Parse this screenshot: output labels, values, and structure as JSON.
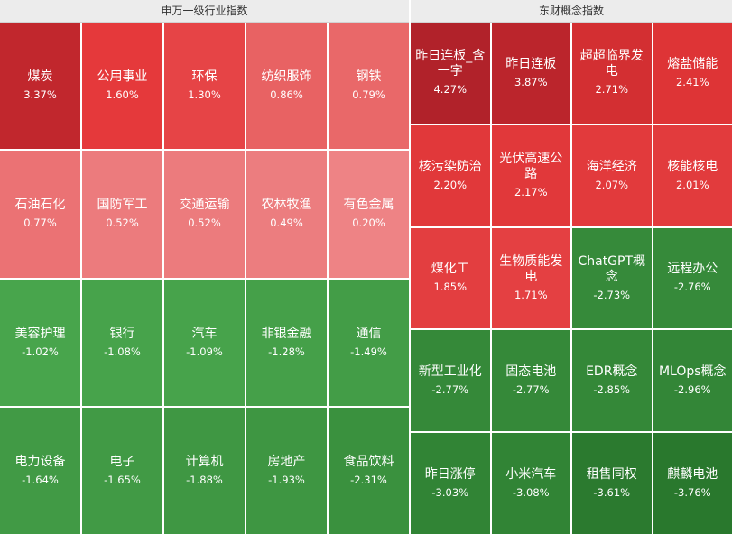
{
  "left_panel": {
    "title": "申万一级行业指数",
    "tiles": [
      {
        "name": "煤炭",
        "change": "3.37%",
        "color": "#c1272d"
      },
      {
        "name": "公用事业",
        "change": "1.60%",
        "color": "#e5393b"
      },
      {
        "name": "环保",
        "change": "1.30%",
        "color": "#e64446"
      },
      {
        "name": "纺织服饰",
        "change": "0.86%",
        "color": "#e86263"
      },
      {
        "name": "钢铁",
        "change": "0.79%",
        "color": "#e96869"
      },
      {
        "name": "石油石化",
        "change": "0.77%",
        "color": "#eb7274"
      },
      {
        "name": "国防军工",
        "change": "0.52%",
        "color": "#ec7b7d"
      },
      {
        "name": "交通运输",
        "change": "0.52%",
        "color": "#ec7b7d"
      },
      {
        "name": "农林牧渔",
        "change": "0.49%",
        "color": "#ec7d7f"
      },
      {
        "name": "有色金属",
        "change": "0.20%",
        "color": "#ee8385"
      },
      {
        "name": "美容护理",
        "change": "-1.02%",
        "color": "#48a54c"
      },
      {
        "name": "银行",
        "change": "-1.08%",
        "color": "#47a34b"
      },
      {
        "name": "汽车",
        "change": "-1.09%",
        "color": "#47a34b"
      },
      {
        "name": "非银金融",
        "change": "-1.28%",
        "color": "#45a049"
      },
      {
        "name": "通信",
        "change": "-1.49%",
        "color": "#439d47"
      },
      {
        "name": "电力设备",
        "change": "-1.64%",
        "color": "#419a45"
      },
      {
        "name": "电子",
        "change": "-1.65%",
        "color": "#419a45"
      },
      {
        "name": "计算机",
        "change": "-1.88%",
        "color": "#3f9743"
      },
      {
        "name": "房地产",
        "change": "-1.93%",
        "color": "#3e9642"
      },
      {
        "name": "食品饮料",
        "change": "-2.31%",
        "color": "#3a913e"
      }
    ]
  },
  "right_panel": {
    "title": "东财概念指数",
    "tiles": [
      {
        "name": "昨日连板_含一字",
        "change": "4.27%",
        "color": "#b1222a"
      },
      {
        "name": "昨日连板",
        "change": "3.87%",
        "color": "#bb252c"
      },
      {
        "name": "超超临界发电",
        "change": "2.71%",
        "color": "#d32f32"
      },
      {
        "name": "熔盐储能",
        "change": "2.41%",
        "color": "#de3436"
      },
      {
        "name": "核污染防治",
        "change": "2.20%",
        "color": "#e1383a"
      },
      {
        "name": "光伏高速公路",
        "change": "2.17%",
        "color": "#e1383a"
      },
      {
        "name": "海洋经济",
        "change": "2.07%",
        "color": "#e23a3c"
      },
      {
        "name": "核能核电",
        "change": "2.01%",
        "color": "#e23b3d"
      },
      {
        "name": "煤化工",
        "change": "1.85%",
        "color": "#e33e40"
      },
      {
        "name": "生物质能发电",
        "change": "1.71%",
        "color": "#e44042"
      },
      {
        "name": "ChatGPT概念",
        "change": "-2.73%",
        "color": "#368a3a"
      },
      {
        "name": "远程办公",
        "change": "-2.76%",
        "color": "#368a3a"
      },
      {
        "name": "新型工业化",
        "change": "-2.77%",
        "color": "#358939"
      },
      {
        "name": "固态电池",
        "change": "-2.77%",
        "color": "#358939"
      },
      {
        "name": "EDR概念",
        "change": "-2.85%",
        "color": "#348838"
      },
      {
        "name": "MLOps概念",
        "change": "-2.96%",
        "color": "#338637"
      },
      {
        "name": "昨日涨停",
        "change": "-3.03%",
        "color": "#318435"
      },
      {
        "name": "小米汽车",
        "change": "-3.08%",
        "color": "#318435"
      },
      {
        "name": "租售同权",
        "change": "-3.61%",
        "color": "#2b7a2f"
      },
      {
        "name": "麒麟电池",
        "change": "-3.76%",
        "color": "#29782d"
      }
    ]
  }
}
